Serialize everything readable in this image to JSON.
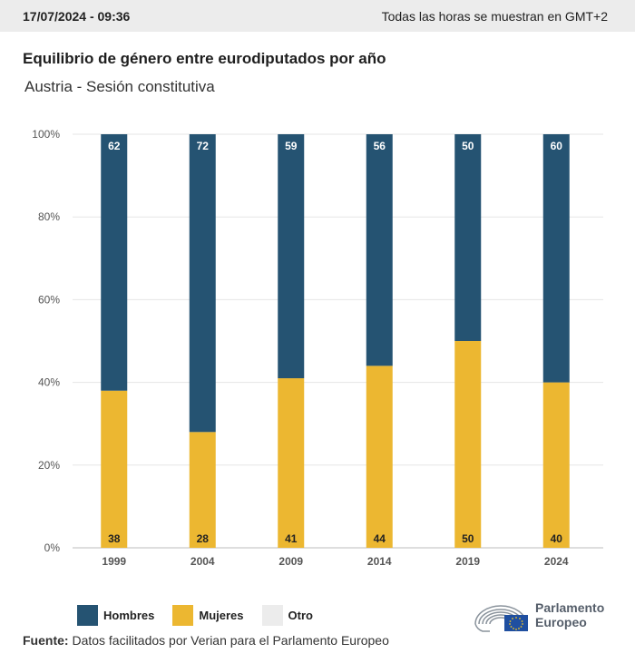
{
  "header": {
    "timestamp": "17/07/2024 - 09:36",
    "timezone_note": "Todas las horas se muestran en GMT+2"
  },
  "chart_data": {
    "type": "bar",
    "stacked": true,
    "title": "Equilibrio de género entre eurodiputados por año",
    "subtitle": "Austria - Sesión constitutiva",
    "categories": [
      "1999",
      "2004",
      "2009",
      "2014",
      "2019",
      "2024"
    ],
    "series": [
      {
        "name": "Mujeres",
        "color": "#ecb731",
        "values": [
          38,
          28,
          41,
          44,
          50,
          40
        ]
      },
      {
        "name": "Hombres",
        "color": "#255372",
        "values": [
          62,
          72,
          59,
          56,
          50,
          60
        ]
      },
      {
        "name": "Otro",
        "color": "#ececec",
        "values": [
          0,
          0,
          0,
          0,
          0,
          0
        ]
      }
    ],
    "yticks": [
      "0%",
      "20%",
      "40%",
      "60%",
      "80%",
      "100%"
    ],
    "ylim": [
      0,
      100
    ],
    "grid": true,
    "legend_position": "bottom"
  },
  "legend": [
    {
      "label": "Hombres",
      "color": "#255372"
    },
    {
      "label": "Mujeres",
      "color": "#ecb731"
    },
    {
      "label": "Otro",
      "color": "#ececec"
    }
  ],
  "footer": {
    "source_label": "Fuente:",
    "source_text": "Datos facilitados por Verian para el Parlamento Europeo"
  },
  "logo": {
    "line1": "Parlamento",
    "line2": "Europeo",
    "icon": "european-parliament-logo-icon"
  }
}
